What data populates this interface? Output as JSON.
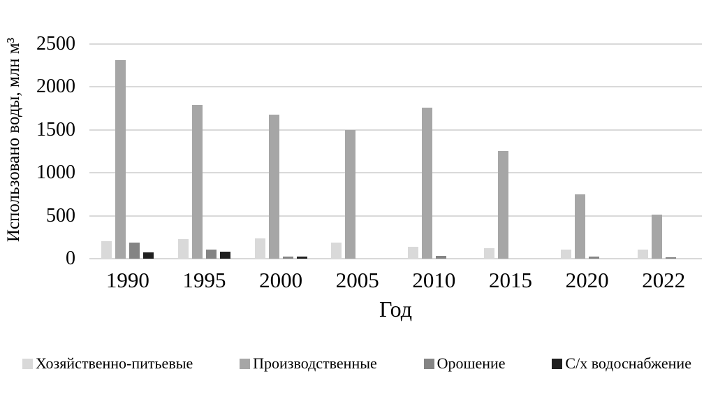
{
  "chart_data": {
    "type": "bar",
    "title": "",
    "categories": [
      "1990",
      "1995",
      "2000",
      "2005",
      "2010",
      "2015",
      "2020",
      "2022"
    ],
    "series": [
      {
        "name": "Хозяйственно-питьевые",
        "color": "#d9d9d9",
        "values": [
          205,
          230,
          235,
          190,
          140,
          120,
          105,
          105
        ]
      },
      {
        "name": "Производственные",
        "color": "#a6a6a6",
        "values": [
          2310,
          1790,
          1680,
          1500,
          1760,
          1255,
          750,
          515
        ]
      },
      {
        "name": "Орошение",
        "color": "#848484",
        "values": [
          185,
          105,
          25,
          0,
          30,
          0,
          25,
          20
        ]
      },
      {
        "name": "С/х водоснабжение",
        "color": "#1f1f1f",
        "values": [
          70,
          80,
          25,
          0,
          0,
          0,
          0,
          0
        ]
      }
    ],
    "xlabel": "Год",
    "ylabel": "Использовано воды, млн м³",
    "ylim": [
      0,
      2500
    ],
    "y_ticks": [
      0,
      500,
      1000,
      1500,
      2000,
      2500
    ],
    "grid": "horizontal",
    "legend_position": "bottom"
  },
  "colors": {
    "gridline": "#d9d9d9",
    "text": "#000000",
    "background": "#ffffff"
  }
}
